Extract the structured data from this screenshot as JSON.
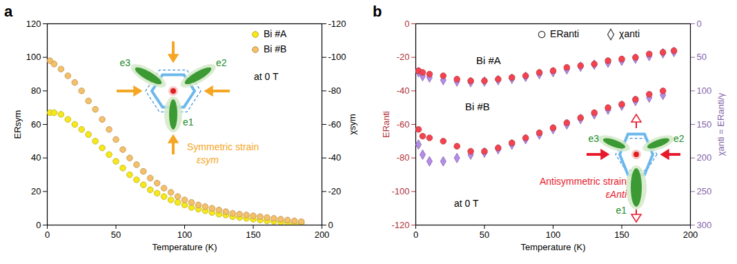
{
  "chart_data": [
    {
      "title": "a",
      "type": "scatter",
      "xlabel": "Temperature (K)",
      "ylabel": "ERsym",
      "y2label": "χsym",
      "xlim": [
        0,
        200
      ],
      "xticks": [
        0,
        50,
        100,
        150,
        200
      ],
      "ylim": [
        0,
        120
      ],
      "yticks": [
        0,
        20,
        40,
        60,
        80,
        100,
        120
      ],
      "y2lim": [
        0,
        -120
      ],
      "y2ticks": [
        0,
        -20,
        -40,
        -60,
        -80,
        -100,
        -120
      ],
      "legend": "upper right",
      "annotations": [
        "at 0 T"
      ],
      "inset": {
        "labels": [
          "e1",
          "e2",
          "e3"
        ],
        "text": "Symmetric strain",
        "symbol": "εsym"
      },
      "x": [
        2,
        5,
        10,
        15,
        20,
        25,
        30,
        35,
        40,
        45,
        50,
        55,
        60,
        65,
        70,
        75,
        80,
        85,
        90,
        95,
        100,
        105,
        110,
        115,
        120,
        125,
        130,
        135,
        140,
        145,
        150,
        155,
        160,
        165,
        170,
        175,
        180,
        185
      ],
      "series": [
        {
          "name": "Bi #A",
          "color": "#f7e81c",
          "marker": "circle",
          "axis": "y",
          "values": [
            67,
            67,
            66,
            63,
            60,
            57,
            54,
            50,
            46,
            42,
            38,
            34,
            30,
            27,
            24,
            21,
            19,
            17,
            15,
            13.5,
            12,
            10.5,
            9.5,
            8.5,
            7.5,
            6.5,
            6,
            5,
            4.5,
            4,
            3.5,
            3,
            2.5,
            2.2,
            1.8,
            1.5,
            1.2,
            1
          ]
        },
        {
          "name": "Bi #B",
          "color": "#f5c06a",
          "marker": "circle",
          "axis": "y",
          "values": [
            98,
            96,
            93,
            89,
            85,
            80,
            74,
            69,
            63,
            57,
            51,
            45,
            40,
            36,
            32,
            28,
            25,
            22,
            19.5,
            17,
            15,
            13.5,
            12,
            11,
            10,
            9,
            8,
            7,
            6.5,
            6,
            5.5,
            5,
            4.5,
            4,
            3.5,
            3,
            2.5,
            2
          ]
        }
      ]
    },
    {
      "title": "b",
      "type": "scatter",
      "xlabel": "Temperature (K)",
      "ylabel": "ERanti",
      "y2label": "χanti = ERanti/γ",
      "xlim": [
        0,
        200
      ],
      "xticks": [
        0,
        50,
        100,
        150,
        200
      ],
      "ylim": [
        -120,
        0
      ],
      "yticks": [
        0,
        -20,
        -40,
        -60,
        -80,
        -100,
        -120
      ],
      "y2lim": [
        300,
        0
      ],
      "y2ticks": [
        0,
        50,
        100,
        150,
        200,
        250,
        300
      ],
      "legend": "top",
      "annotations": [
        "at 0 T"
      ],
      "inset": {
        "labels": [
          "e1",
          "e2",
          "e3"
        ],
        "text": "Antisymmetric strain",
        "symbol": "εAnti"
      },
      "samples": [
        "Bi #A",
        "Bi #B"
      ],
      "x": [
        2,
        5,
        10,
        20,
        30,
        40,
        50,
        60,
        70,
        80,
        90,
        100,
        110,
        120,
        130,
        140,
        150,
        160,
        170,
        180,
        188
      ],
      "series": [
        {
          "name": "χanti",
          "color": "#b58be8",
          "marker": "diamond",
          "axis": "y2",
          "values": [
            [
              72,
              78,
              80,
              84,
              86,
              87,
              86,
              84,
              82,
              79,
              75,
              72,
              68,
              64,
              61,
              58,
              55,
              52,
              48,
              44,
              42
            ],
            [
              180,
              195,
              205,
              205,
              200,
              195,
              192,
              187,
              180,
              172,
              165,
              157,
              150,
              142,
              135,
              128,
              122,
              115,
              110,
              106,
              null
            ]
          ]
        },
        {
          "name": "ERanti",
          "color": "#f4434f",
          "marker": "circle",
          "axis": "y",
          "values": [
            [
              -28,
              -29,
              -30,
              -31,
              -33,
              -34,
              -34,
              -33,
              -32,
              -31,
              -29,
              -28,
              -26,
              -25,
              -24,
              -22,
              -21,
              -20,
              -18,
              -17,
              -16
            ],
            [
              -63,
              -67,
              -68,
              -70,
              -73,
              -76,
              -76,
              -74,
              -71,
              -68,
              -65,
              -62,
              -59,
              -56,
              -53,
              -50,
              -48,
              -45,
              -42,
              -40,
              null
            ]
          ]
        }
      ]
    }
  ]
}
